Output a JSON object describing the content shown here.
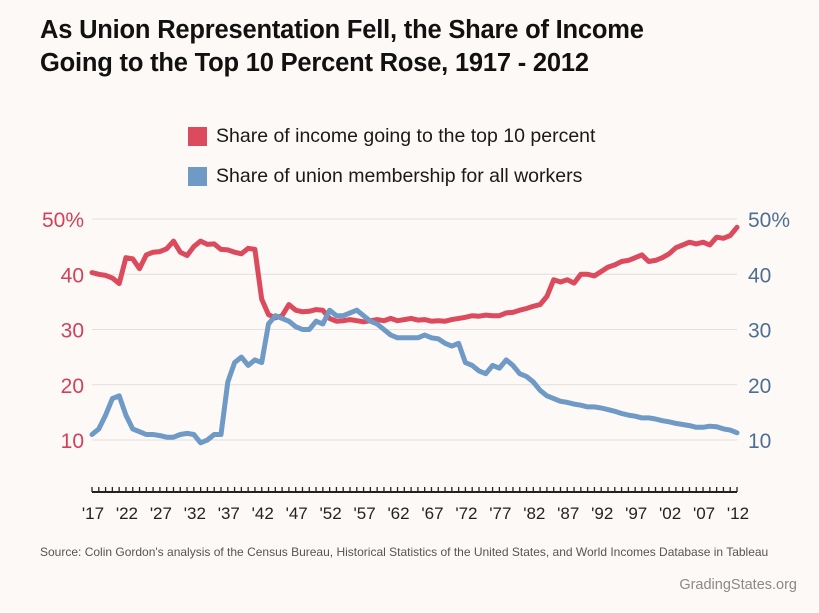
{
  "title": {
    "line1": "As Union Representation Fell, the Share of Income",
    "line2": "Going to the Top 10 Percent Rose, 1917 - 2012"
  },
  "colors": {
    "income": "#dc4a5e",
    "union": "#6f9ac6",
    "left_axis": "#d3405a",
    "right_axis": "#4f6f92",
    "grid": "#e2dfdc",
    "axis_line": "#222222"
  },
  "source": "Source: Colin Gordon's analysis of the Census Bureau, Historical Statistics of the United States, and World Incomes Database in Tableau",
  "credit": "GradingStates.org",
  "chart_data": {
    "type": "line",
    "title": "As Union Representation Fell, the Share of Income Going to the Top 10 Percent Rose, 1917 - 2012",
    "xlabel": "",
    "ylabel": "",
    "xlim": [
      1917,
      2012
    ],
    "ylim": [
      10,
      50
    ],
    "grid": true,
    "legend_position": "top",
    "x_tick_labels": [
      "'17",
      "'22",
      "'27",
      "'32",
      "'37",
      "'42",
      "'47",
      "'52",
      "'57",
      "'62",
      "'67",
      "'72",
      "'77",
      "'82",
      "'87",
      "'92",
      "'97",
      "'02",
      "'07",
      "'12"
    ],
    "x_tick_values": [
      1917,
      1922,
      1927,
      1932,
      1937,
      1942,
      1947,
      1952,
      1957,
      1962,
      1967,
      1972,
      1977,
      1982,
      1987,
      1992,
      1997,
      2002,
      2007,
      2012
    ],
    "y_ticks": [
      10,
      20,
      30,
      40,
      50
    ],
    "left_tick_labels": [
      "10",
      "20",
      "30",
      "40",
      "50%"
    ],
    "right_tick_labels": [
      "10",
      "20",
      "30",
      "40",
      "50%"
    ],
    "series": [
      {
        "name": "Share of income going to the top 10 percent",
        "color": "#dc4a5e",
        "x": [
          1917,
          1918,
          1919,
          1920,
          1921,
          1922,
          1923,
          1924,
          1925,
          1926,
          1927,
          1928,
          1929,
          1930,
          1931,
          1932,
          1933,
          1934,
          1935,
          1936,
          1937,
          1938,
          1939,
          1940,
          1941,
          1942,
          1943,
          1944,
          1945,
          1946,
          1947,
          1948,
          1949,
          1950,
          1951,
          1952,
          1953,
          1954,
          1955,
          1956,
          1957,
          1958,
          1959,
          1960,
          1961,
          1962,
          1963,
          1964,
          1965,
          1966,
          1967,
          1968,
          1969,
          1970,
          1971,
          1972,
          1973,
          1974,
          1975,
          1976,
          1977,
          1978,
          1979,
          1980,
          1981,
          1982,
          1983,
          1984,
          1985,
          1986,
          1987,
          1988,
          1989,
          1990,
          1991,
          1992,
          1993,
          1994,
          1995,
          1996,
          1997,
          1998,
          1999,
          2000,
          2001,
          2002,
          2003,
          2004,
          2005,
          2006,
          2007,
          2008,
          2009,
          2010,
          2011,
          2012
        ],
        "values": [
          40.3,
          40.0,
          39.8,
          39.3,
          38.3,
          43.0,
          42.8,
          41.0,
          43.5,
          44.0,
          44.1,
          44.6,
          46.0,
          44.0,
          43.4,
          45.0,
          46.0,
          45.4,
          45.5,
          44.5,
          44.4,
          44.0,
          43.7,
          44.7,
          44.5,
          35.5,
          32.7,
          32.1,
          32.5,
          34.5,
          33.5,
          33.2,
          33.3,
          33.6,
          33.5,
          32.0,
          31.5,
          31.6,
          31.8,
          31.6,
          31.4,
          31.6,
          31.8,
          31.6,
          32.0,
          31.6,
          31.8,
          32.0,
          31.7,
          31.8,
          31.5,
          31.6,
          31.5,
          31.8,
          32.0,
          32.2,
          32.5,
          32.4,
          32.6,
          32.5,
          32.5,
          33.0,
          33.1,
          33.5,
          33.8,
          34.2,
          34.5,
          36.0,
          39.0,
          38.6,
          39.0,
          38.4,
          40.0,
          40.0,
          39.7,
          40.5,
          41.3,
          41.7,
          42.3,
          42.5,
          43.0,
          43.5,
          42.3,
          42.5,
          43.0,
          43.7,
          44.8,
          45.3,
          45.8,
          45.5,
          45.8,
          45.3,
          46.7,
          46.5,
          47.0,
          48.5
        ]
      },
      {
        "name": "Share of union membership for all workers",
        "color": "#6f9ac6",
        "x": [
          1917,
          1918,
          1919,
          1920,
          1921,
          1922,
          1923,
          1924,
          1925,
          1926,
          1927,
          1928,
          1929,
          1930,
          1931,
          1932,
          1933,
          1934,
          1935,
          1936,
          1937,
          1938,
          1939,
          1940,
          1941,
          1942,
          1943,
          1944,
          1945,
          1946,
          1947,
          1948,
          1949,
          1950,
          1951,
          1952,
          1953,
          1954,
          1955,
          1956,
          1957,
          1958,
          1959,
          1960,
          1961,
          1962,
          1963,
          1964,
          1965,
          1966,
          1967,
          1968,
          1969,
          1970,
          1971,
          1972,
          1973,
          1974,
          1975,
          1976,
          1977,
          1978,
          1979,
          1980,
          1981,
          1982,
          1983,
          1984,
          1985,
          1986,
          1987,
          1988,
          1989,
          1990,
          1991,
          1992,
          1993,
          1994,
          1995,
          1996,
          1997,
          1998,
          1999,
          2000,
          2001,
          2002,
          2003,
          2004,
          2005,
          2006,
          2007,
          2008,
          2009,
          2010,
          2011,
          2012
        ],
        "values": [
          11.0,
          12.0,
          14.5,
          17.5,
          18.0,
          14.5,
          12.0,
          11.5,
          11.0,
          11.0,
          10.8,
          10.5,
          10.5,
          11.0,
          11.2,
          11.0,
          9.5,
          10.0,
          11.0,
          11.0,
          20.5,
          24.0,
          25.0,
          23.5,
          24.5,
          24.0,
          31.0,
          32.5,
          32.0,
          31.5,
          30.5,
          30.0,
          30.0,
          31.5,
          31.0,
          33.5,
          32.5,
          32.5,
          33.0,
          33.5,
          32.5,
          31.5,
          31.0,
          30.0,
          29.0,
          28.5,
          28.5,
          28.5,
          28.5,
          29.0,
          28.5,
          28.3,
          27.5,
          27.0,
          27.5,
          24.0,
          23.5,
          22.5,
          22.0,
          23.5,
          23.0,
          24.5,
          23.5,
          22.0,
          21.5,
          20.5,
          19.0,
          18.0,
          17.5,
          17.0,
          16.8,
          16.5,
          16.3,
          16.0,
          16.0,
          15.8,
          15.5,
          15.2,
          14.8,
          14.5,
          14.3,
          14.0,
          14.0,
          13.8,
          13.5,
          13.3,
          13.0,
          12.8,
          12.6,
          12.3,
          12.3,
          12.5,
          12.4,
          12.0,
          11.8,
          11.3
        ]
      }
    ]
  }
}
